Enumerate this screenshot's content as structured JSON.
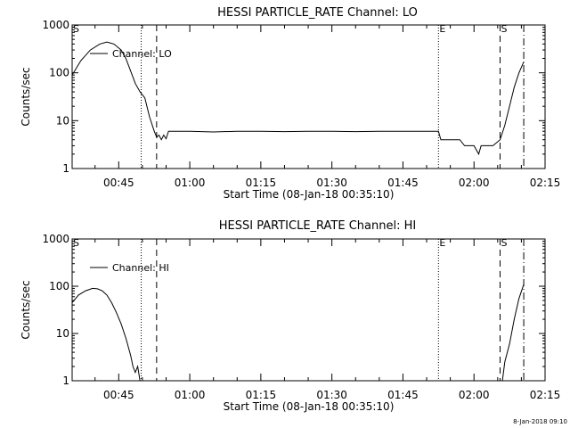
{
  "footer_timestamp": "8-Jan-2018 09:10",
  "chart_data": [
    {
      "type": "line",
      "title": "HESSI PARTICLE_RATE Channel: LO",
      "xlabel": "Start Time (08-Jan-18 00:35:10)",
      "ylabel": "Counts/sec",
      "yscale": "log",
      "ylim": [
        1,
        1000
      ],
      "xlim": [
        "00:35:10",
        "02:15:00"
      ],
      "x_ticks": [
        "00:45",
        "01:00",
        "01:15",
        "01:30",
        "01:45",
        "02:00",
        "02:15"
      ],
      "y_ticks": [
        "1",
        "10",
        "100",
        "1000"
      ],
      "legend": "Channel: LO",
      "legend_position": "top-left",
      "markers": [
        {
          "label": "E",
          "time": "01:52:30",
          "style": "dotted",
          "labeled": true
        },
        {
          "label": "S",
          "time": "02:05:30",
          "style": "dashed",
          "labeled": true
        },
        {
          "label": "",
          "time": "00:49:45",
          "style": "dotted",
          "labeled": false
        },
        {
          "label": "",
          "time": "00:53:00",
          "style": "dashed",
          "labeled": false
        },
        {
          "label": "",
          "time": "02:10:30",
          "style": "dash-dot",
          "labeled": false
        }
      ],
      "top_left_label": "S",
      "series": [
        {
          "name": "Channel: LO",
          "points": [
            [
              "00:35:10",
              90
            ],
            [
              "00:37:00",
              180
            ],
            [
              "00:39:00",
              300
            ],
            [
              "00:41:00",
              400
            ],
            [
              "00:42:30",
              440
            ],
            [
              "00:44:00",
              400
            ],
            [
              "00:45:30",
              300
            ],
            [
              "00:46:30",
              200
            ],
            [
              "00:47:30",
              110
            ],
            [
              "00:48:30",
              60
            ],
            [
              "00:49:30",
              40
            ],
            [
              "00:50:30",
              30
            ],
            [
              "00:51:30",
              12
            ],
            [
              "00:52:30",
              6
            ],
            [
              "00:53:00",
              4.5
            ],
            [
              "00:53:30",
              5
            ],
            [
              "00:54:00",
              4
            ],
            [
              "00:54:30",
              5
            ],
            [
              "00:55:00",
              4.2
            ],
            [
              "00:55:30",
              6
            ],
            [
              "00:57:00",
              6
            ],
            [
              "00:58:30",
              6
            ],
            [
              "01:00:00",
              6
            ],
            [
              "01:05:00",
              5.8
            ],
            [
              "01:10:00",
              6
            ],
            [
              "01:15:00",
              6
            ],
            [
              "01:20:00",
              5.9
            ],
            [
              "01:25:00",
              6
            ],
            [
              "01:30:00",
              6
            ],
            [
              "01:35:00",
              5.9
            ],
            [
              "01:40:00",
              6
            ],
            [
              "01:45:00",
              6
            ],
            [
              "01:50:00",
              6
            ],
            [
              "01:52:30",
              6
            ],
            [
              "01:53:00",
              4
            ],
            [
              "01:55:00",
              4
            ],
            [
              "01:57:00",
              4
            ],
            [
              "01:58:00",
              3
            ],
            [
              "02:00:00",
              3
            ],
            [
              "02:01:00",
              2
            ],
            [
              "02:01:30",
              3
            ],
            [
              "02:03:00",
              3
            ],
            [
              "02:04:00",
              3
            ],
            [
              "02:05:30",
              4
            ],
            [
              "02:06:30",
              8
            ],
            [
              "02:07:30",
              20
            ],
            [
              "02:08:30",
              50
            ],
            [
              "02:09:30",
              100
            ],
            [
              "02:10:30",
              170
            ]
          ]
        }
      ]
    },
    {
      "type": "line",
      "title": "HESSI PARTICLE_RATE Channel: HI",
      "xlabel": "Start Time (08-Jan-18 00:35:10)",
      "ylabel": "Counts/sec",
      "yscale": "log",
      "ylim": [
        1,
        1000
      ],
      "xlim": [
        "00:35:10",
        "02:15:00"
      ],
      "x_ticks": [
        "00:45",
        "01:00",
        "01:15",
        "01:30",
        "01:45",
        "02:00",
        "02:15"
      ],
      "y_ticks": [
        "1",
        "10",
        "100",
        "1000"
      ],
      "legend": "Channel: HI",
      "legend_position": "top-left",
      "markers": [
        {
          "label": "E",
          "time": "01:52:30",
          "style": "dotted",
          "labeled": true
        },
        {
          "label": "S",
          "time": "02:05:30",
          "style": "dashed",
          "labeled": true
        },
        {
          "label": "",
          "time": "00:49:45",
          "style": "dotted",
          "labeled": false
        },
        {
          "label": "",
          "time": "00:53:00",
          "style": "dashed",
          "labeled": false
        },
        {
          "label": "",
          "time": "02:10:30",
          "style": "dash-dot",
          "labeled": false
        }
      ],
      "top_left_label": "S",
      "series": [
        {
          "name": "Channel: HI",
          "points": [
            [
              "00:35:10",
              45
            ],
            [
              "00:36:30",
              65
            ],
            [
              "00:38:00",
              80
            ],
            [
              "00:39:30",
              90
            ],
            [
              "00:40:30",
              88
            ],
            [
              "00:41:30",
              80
            ],
            [
              "00:42:30",
              65
            ],
            [
              "00:43:30",
              45
            ],
            [
              "00:44:30",
              28
            ],
            [
              "00:45:30",
              16
            ],
            [
              "00:46:30",
              8
            ],
            [
              "00:47:30",
              3.5
            ],
            [
              "00:48:00",
              2
            ],
            [
              "00:48:30",
              1.5
            ],
            [
              "00:49:00",
              2
            ],
            [
              "00:49:30",
              1
            ]
          ]
        },
        {
          "name": "Channel: HI",
          "points": [
            [
              "02:06:00",
              1
            ],
            [
              "02:06:30",
              2.5
            ],
            [
              "02:07:30",
              6
            ],
            [
              "02:08:30",
              20
            ],
            [
              "02:09:30",
              55
            ],
            [
              "02:10:30",
              110
            ]
          ]
        }
      ]
    }
  ]
}
